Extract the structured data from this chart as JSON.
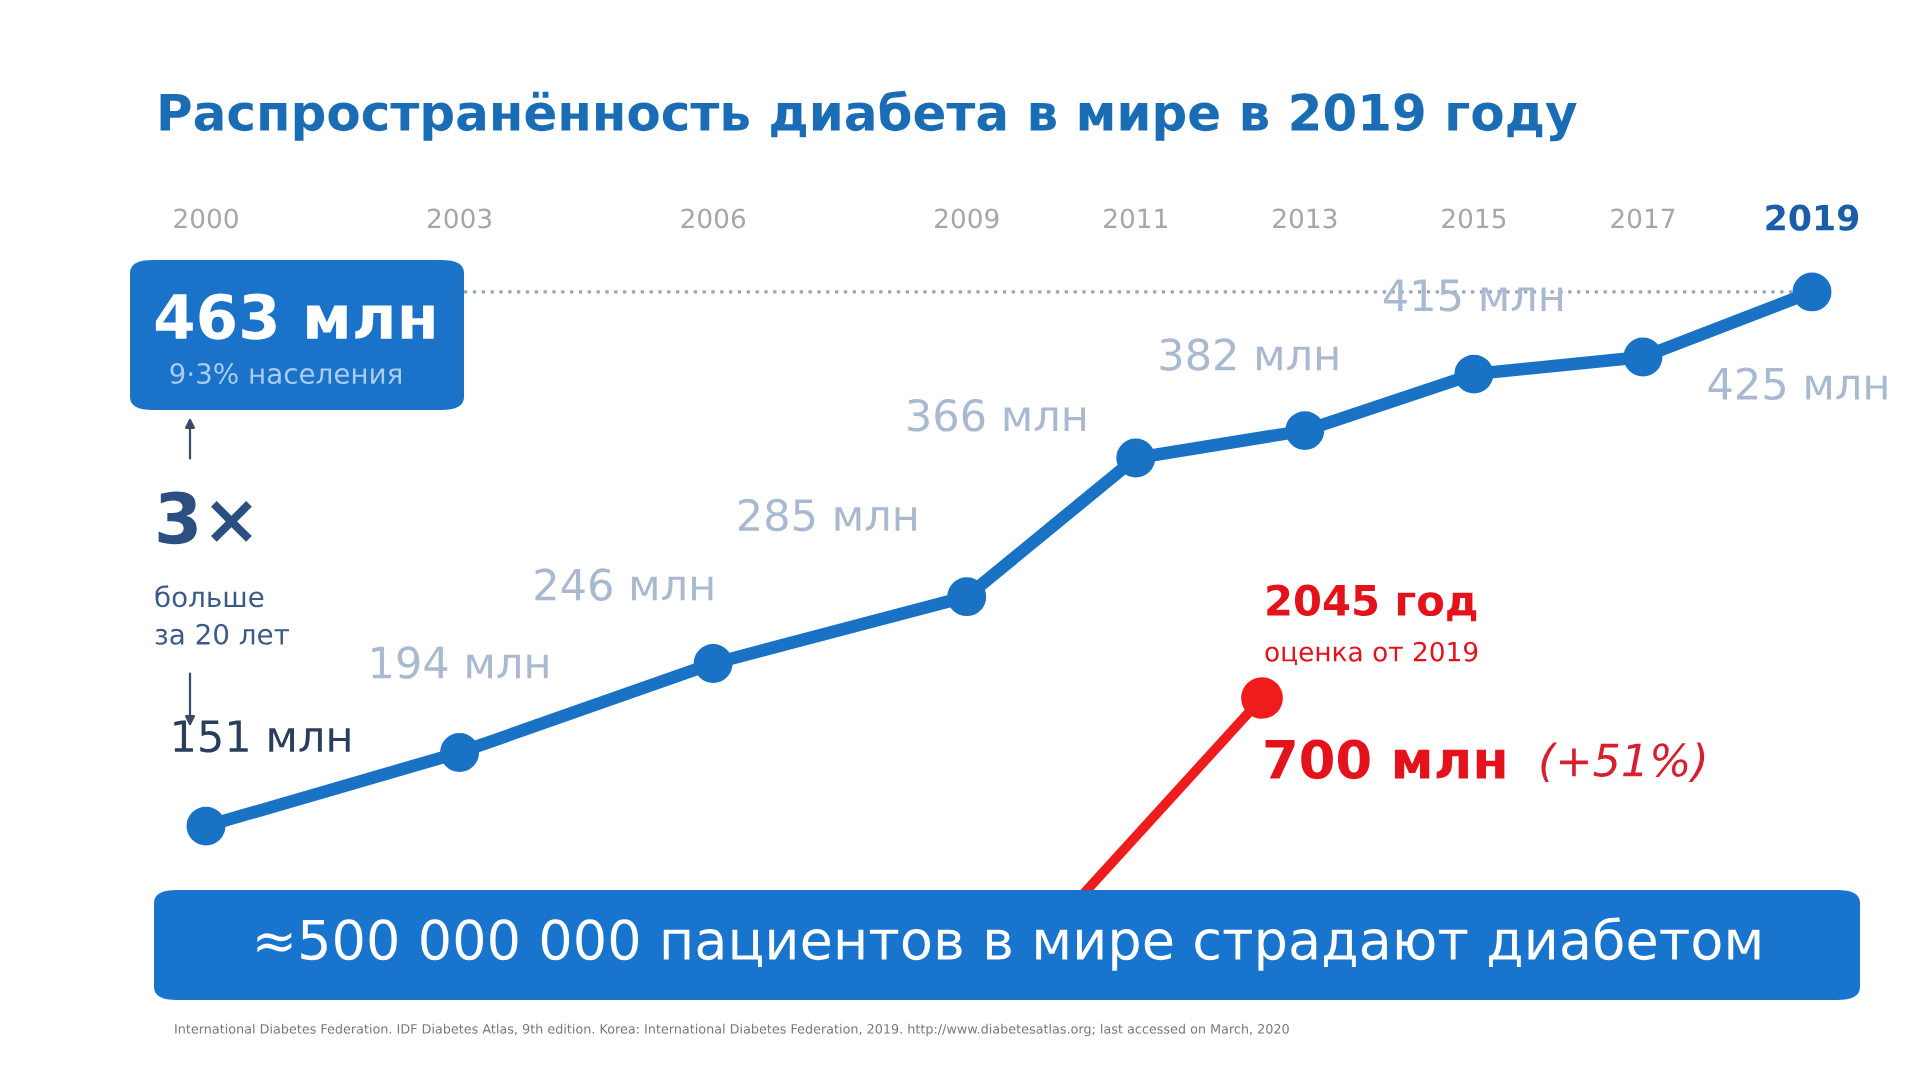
{
  "chart_data": {
    "type": "line",
    "title": "Распространённость диабета в мире в 2019 году",
    "x": [
      2000,
      2003,
      2006,
      2009,
      2011,
      2013,
      2015,
      2017,
      2019
    ],
    "values": [
      151,
      194,
      246,
      285,
      366,
      382,
      415,
      425,
      463
    ],
    "value_labels": [
      "151 млн",
      "194 млн",
      "246 млн",
      "285 млн",
      "366 млн",
      "382 млн",
      "415 млн",
      "425 млн",
      null
    ],
    "color": "#1a72c4",
    "marker": "circle",
    "line_style": "solid",
    "xlim": [
      2000,
      2019
    ],
    "xticks": [
      2000,
      2003,
      2006,
      2009,
      2011,
      2013,
      2015,
      2017,
      2019
    ],
    "tick_labels": "x",
    "ref_lines": [
      {
        "axis": "y",
        "value": 463,
        "label": "463 млн",
        "color": "#9aa6b6",
        "line_style": "dotted"
      }
    ],
    "annotations": [
      "9·3% населения",
      "3×",
      "больше\nза 20 лет",
      "2045 год",
      "оценка от 2019",
      "700 млн",
      "(+51%)",
      "≈500 000 000 пациентов в мире страдают диабетом",
      "International Diabetes Federation. IDF Diabetes Atlas, 9th edition. Korea: International Diabetes Federation, 2019. http://www.diabetesatlas.org; last accessed on March, 2020"
    ]
  }
}
